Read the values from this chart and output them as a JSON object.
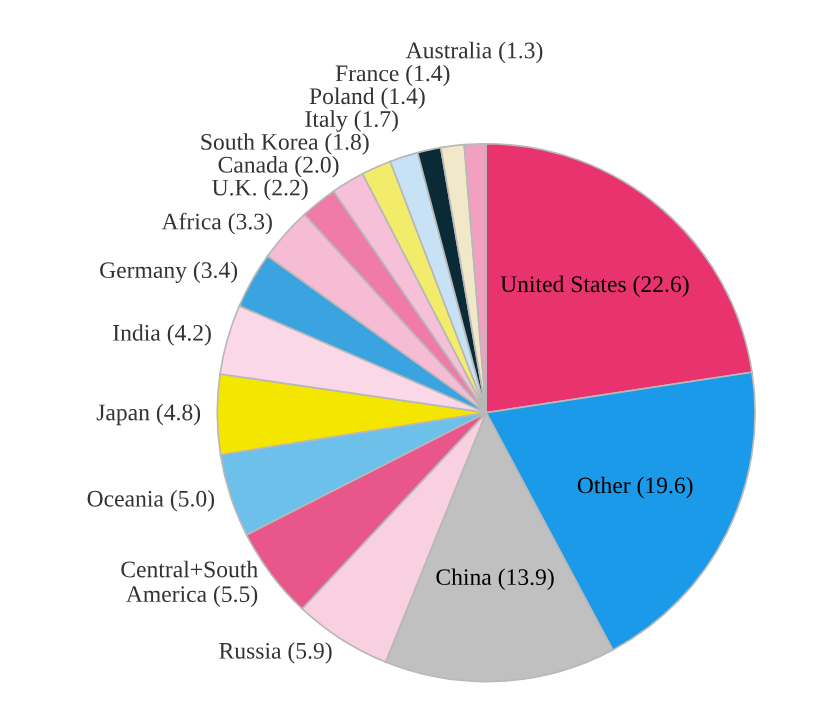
{
  "chart_data": {
    "type": "pie",
    "categories": [
      "United States",
      "Other",
      "China",
      "Russia",
      "Central+South America",
      "Oceania",
      "Japan",
      "India",
      "Germany",
      "Africa",
      "U.K.",
      "Canada",
      "South Korea",
      "Italy",
      "Poland",
      "France",
      "Australia"
    ],
    "values": [
      22.6,
      19.6,
      13.9,
      5.9,
      5.5,
      5.0,
      4.8,
      4.2,
      3.4,
      3.3,
      2.2,
      2.0,
      1.8,
      1.7,
      1.4,
      1.4,
      1.3
    ],
    "value_labels": [
      "(22.6)",
      "(19.6)",
      "(13.9)",
      "(5.9)",
      "(5.5)",
      "(5.0)",
      "(4.8)",
      "(4.2)",
      "(3.4)",
      "(3.3)",
      "(2.2)",
      "(2.0)",
      "(1.8)",
      "(1.7)",
      "(1.4)",
      "(1.4)",
      "(1.3)"
    ],
    "colors": [
      "#e8336f",
      "#1a9ae8",
      "#c0c0c0",
      "#f9d0e0",
      "#e8568a",
      "#6cc0ea",
      "#f5e600",
      "#fbd8e8",
      "#3aa3e0",
      "#f6bcd4",
      "#f07aa8",
      "#f5c0d8",
      "#f3ec6a",
      "#c8e2f5",
      "#0a2a35",
      "#f0e8c8",
      "#f2a0c0"
    ]
  }
}
